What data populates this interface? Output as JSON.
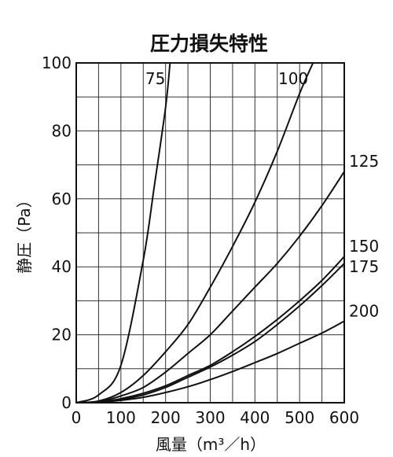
{
  "chart_data": {
    "type": "line",
    "title": "圧力損失特性",
    "xlabel": "風量（m³／h）",
    "ylabel": "静圧（Pa）",
    "xlim": [
      0,
      600
    ],
    "ylim": [
      0,
      100
    ],
    "xticks": [
      0,
      100,
      200,
      300,
      400,
      500,
      600
    ],
    "yticks": [
      0,
      20,
      40,
      60,
      80,
      100
    ],
    "grid": true,
    "x": [
      0,
      50,
      100,
      150,
      200,
      250,
      300,
      350,
      400,
      450,
      500,
      550,
      600
    ],
    "series": [
      {
        "name": "75",
        "label_position": "inside-top",
        "x": [
          0,
          50,
          100,
          150,
          175,
          200,
          210
        ],
        "values": [
          0,
          2.3,
          11,
          42,
          64,
          87,
          100
        ]
      },
      {
        "name": "100",
        "label_position": "inside-top",
        "x": [
          0,
          50,
          100,
          150,
          200,
          250,
          300,
          350,
          400,
          450,
          500,
          530
        ],
        "values": [
          0,
          0.5,
          3,
          8,
          15,
          23,
          34,
          46,
          59,
          74,
          91,
          100
        ]
      },
      {
        "name": "125",
        "label_position": "right",
        "values": [
          0,
          0.3,
          2,
          4.5,
          9,
          14.5,
          20,
          27,
          34,
          41,
          49,
          58,
          68
        ]
      },
      {
        "name": "150",
        "label_position": "right",
        "values": [
          0,
          0.2,
          1.2,
          2.8,
          5,
          8,
          11,
          15,
          19.5,
          24.5,
          30,
          36,
          43
        ]
      },
      {
        "name": "175",
        "label_position": "right",
        "values": [
          0,
          0.2,
          1.0,
          2.3,
          4.5,
          7.5,
          10.5,
          14,
          18,
          23,
          28.5,
          34.5,
          41
        ]
      },
      {
        "name": "200",
        "label_position": "right",
        "values": [
          0,
          0.15,
          0.7,
          1.6,
          3,
          4.7,
          6.8,
          9.2,
          11.8,
          14.5,
          17.5,
          20.5,
          24
        ]
      }
    ],
    "line_color": "#111111",
    "grid_color": "#333333"
  }
}
